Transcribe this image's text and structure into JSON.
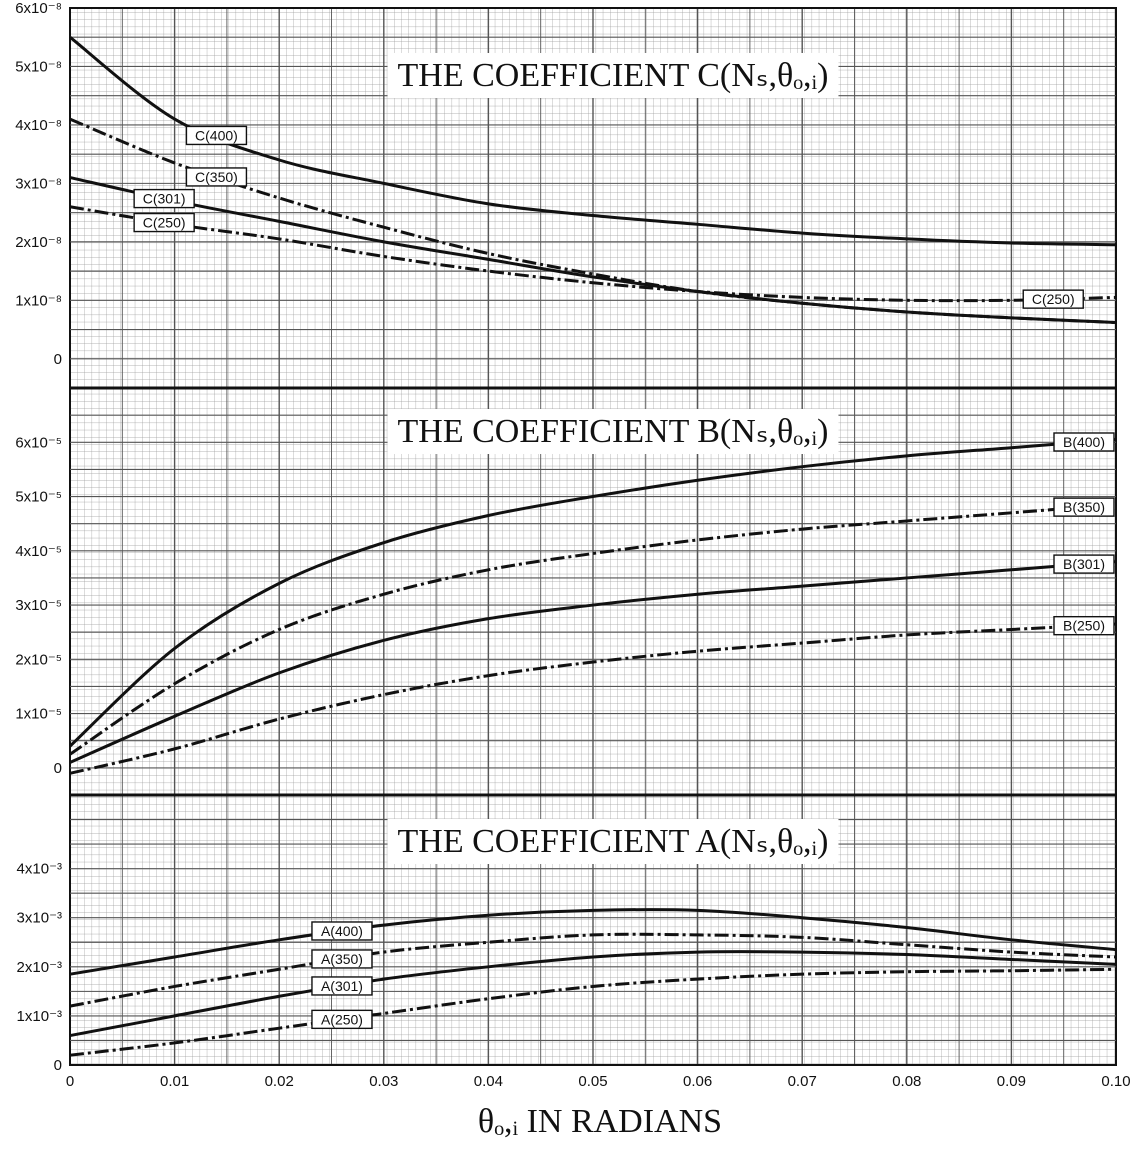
{
  "chart_data": [
    {
      "type": "line",
      "title": "THE COEFFICIENT C(Nₛ,θₒ,ᵢ)",
      "x": [
        0,
        0.01,
        0.02,
        0.03,
        0.04,
        0.05,
        0.06,
        0.07,
        0.08,
        0.09,
        0.1
      ],
      "ylim": [
        -5e-09,
        6e-08
      ],
      "yticks": [
        0,
        1e-08,
        2e-08,
        3e-08,
        4e-08,
        5e-08,
        6e-08
      ],
      "ytick_labels": [
        "0",
        "1x10⁻⁸",
        "2x10⁻⁸",
        "3x10⁻⁸",
        "4x10⁻⁸",
        "5x10⁻⁸",
        "6x10⁻⁸"
      ],
      "series": [
        {
          "name": "C(400)",
          "style": "solid",
          "values": [
            5.5e-08,
            4.1e-08,
            3.4e-08,
            3e-08,
            2.65e-08,
            2.45e-08,
            2.3e-08,
            2.15e-08,
            2.05e-08,
            1.98e-08,
            1.95e-08
          ],
          "label_at": 0.014
        },
        {
          "name": "C(350)",
          "style": "dashed",
          "values": [
            4.1e-08,
            3.35e-08,
            2.75e-08,
            2.25e-08,
            1.8e-08,
            1.45e-08,
            1.15e-08,
            9.5e-09,
            8e-09,
            7e-09,
            6.2e-09
          ],
          "label_at": 0.014
        },
        {
          "name": "C(301)",
          "style": "solid",
          "values": [
            3.1e-08,
            2.7e-08,
            2.35e-08,
            2e-08,
            1.7e-08,
            1.4e-08,
            1.15e-08,
            9.5e-09,
            8e-09,
            7e-09,
            6.2e-09
          ],
          "label_at": 0.009
        },
        {
          "name": "C(250)",
          "style": "dashed",
          "values": [
            2.6e-08,
            2.3e-08,
            2.05e-08,
            1.75e-08,
            1.5e-08,
            1.3e-08,
            1.15e-08,
            1.05e-08,
            1e-08,
            1e-08,
            1.05e-08
          ],
          "label_at": 0.009,
          "label_at_end": 0.094
        }
      ]
    },
    {
      "type": "line",
      "title": "THE COEFFICIENT B(Nₛ,θₒ,ᵢ)",
      "x": [
        0,
        0.01,
        0.02,
        0.03,
        0.04,
        0.05,
        0.06,
        0.07,
        0.08,
        0.09,
        0.1
      ],
      "ylim": [
        -5e-06,
        7e-05
      ],
      "yticks": [
        0,
        1e-05,
        2e-05,
        3e-05,
        4e-05,
        5e-05,
        6e-05
      ],
      "ytick_labels": [
        "0",
        "1x10⁻⁵",
        "2x10⁻⁵",
        "3x10⁻⁵",
        "4x10⁻⁵",
        "5x10⁻⁵",
        "6x10⁻⁵"
      ],
      "series": [
        {
          "name": "B(400)",
          "style": "solid",
          "values": [
            4e-06,
            2.2e-05,
            3.4e-05,
            4.15e-05,
            4.65e-05,
            5e-05,
            5.3e-05,
            5.55e-05,
            5.75e-05,
            5.9e-05,
            6.05e-05
          ],
          "label_at": 0.097
        },
        {
          "name": "B(350)",
          "style": "dashed",
          "values": [
            2.5e-06,
            1.55e-05,
            2.55e-05,
            3.2e-05,
            3.65e-05,
            3.95e-05,
            4.2e-05,
            4.4e-05,
            4.55e-05,
            4.7e-05,
            4.85e-05
          ],
          "label_at": 0.097
        },
        {
          "name": "B(301)",
          "style": "solid",
          "values": [
            1e-06,
            9.5e-06,
            1.75e-05,
            2.35e-05,
            2.75e-05,
            3e-05,
            3.2e-05,
            3.35e-05,
            3.5e-05,
            3.65e-05,
            3.8e-05
          ],
          "label_at": 0.097
        },
        {
          "name": "B(250)",
          "style": "dashed",
          "values": [
            -1e-06,
            3.5e-06,
            9e-06,
            1.35e-05,
            1.7e-05,
            1.95e-05,
            2.15e-05,
            2.3e-05,
            2.45e-05,
            2.55e-05,
            2.65e-05
          ],
          "label_at": 0.097
        }
      ]
    },
    {
      "type": "line",
      "title": "THE COEFFICIENT A(Nₛ,θₒ,ᵢ)",
      "x": [
        0,
        0.01,
        0.02,
        0.03,
        0.04,
        0.05,
        0.06,
        0.07,
        0.08,
        0.09,
        0.1
      ],
      "xlabel": "θₒ,ᵢ IN RADIANS",
      "xtick_labels": [
        "0",
        "0.01",
        "0.02",
        "0.03",
        "0.04",
        "0.05",
        "0.06",
        "0.07",
        "0.08",
        "0.09",
        "0.10"
      ],
      "ylim": [
        0,
        0.0055
      ],
      "yticks": [
        0,
        0.001,
        0.002,
        0.003,
        0.004
      ],
      "ytick_labels": [
        "0",
        "1x10⁻³",
        "2x10⁻³",
        "3x10⁻³",
        "4x10⁻³"
      ],
      "series": [
        {
          "name": "A(400)",
          "style": "solid",
          "values": [
            0.00185,
            0.0022,
            0.00255,
            0.00285,
            0.00305,
            0.00315,
            0.00315,
            0.003,
            0.0028,
            0.00255,
            0.00235
          ],
          "label_at": 0.026
        },
        {
          "name": "A(350)",
          "style": "dashed",
          "values": [
            0.0012,
            0.0016,
            0.00195,
            0.0023,
            0.0025,
            0.00265,
            0.00265,
            0.0026,
            0.00245,
            0.0023,
            0.0022
          ],
          "label_at": 0.026
        },
        {
          "name": "A(301)",
          "style": "solid",
          "values": [
            0.0006,
            0.001,
            0.0014,
            0.00175,
            0.002,
            0.0022,
            0.0023,
            0.0023,
            0.00225,
            0.00215,
            0.00205
          ],
          "label_at": 0.026
        },
        {
          "name": "A(250)",
          "style": "dashed",
          "values": [
            0.0002,
            0.00045,
            0.00075,
            0.00105,
            0.00135,
            0.0016,
            0.00175,
            0.00185,
            0.0019,
            0.00192,
            0.00195
          ],
          "label_at": 0.026
        }
      ]
    }
  ],
  "colors": {
    "grid_minor": "#9a9a9a",
    "grid_major": "#555555",
    "ink": "#111111",
    "background": "#ffffff"
  }
}
